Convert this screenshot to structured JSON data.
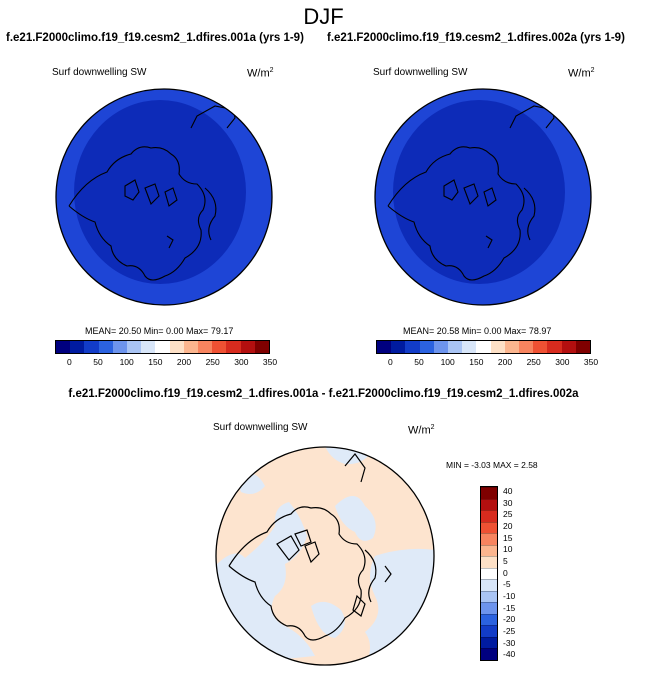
{
  "header": {
    "season": "DJF",
    "left_title": "f.e21.F2000climo.f19_f19.cesm2_1.dfires.001a (yrs 1-9)",
    "right_title": "f.e21.F2000climo.f19_f19.cesm2_1.dfires.002a (yrs 1-9)",
    "diff_title": "f.e21.F2000climo.f19_f19.cesm2_1.dfires.001a - f.e21.F2000climo.f19_f19.cesm2_1.dfires.002a"
  },
  "colors": {
    "map_fill_dark": "#0d2bb8",
    "map_fill_mid": "#1e45d6",
    "diff_pos": "#fde4cf",
    "diff_neg": "#dfeaf8",
    "abs_colorbar": [
      "#00007f",
      "#001ba0",
      "#123cc8",
      "#2b62e0",
      "#6d94ed",
      "#a9c4f4",
      "#d8e6f9",
      "#ffffff",
      "#fde0c6",
      "#fbb58e",
      "#f7845f",
      "#ef5133",
      "#d72b1e",
      "#b30f0f",
      "#7f0000"
    ],
    "diff_colorbar": [
      "#7f0000",
      "#b30f0f",
      "#d72b1e",
      "#ef5133",
      "#f7845f",
      "#fbb58e",
      "#fde0c6",
      "#ffffff",
      "#d8e6f9",
      "#a9c4f4",
      "#6d94ed",
      "#2b62e0",
      "#123cc8",
      "#001ba0",
      "#00007f"
    ]
  },
  "panels": [
    {
      "variable": "Surf downwelling SW",
      "units_base": "W/m",
      "units_exp": "2",
      "stats": "MEAN=  20.50  Min=   0.00  Max=  79.17",
      "colorbar_ticks": [
        "0",
        "50",
        "100",
        "150",
        "200",
        "250",
        "300",
        "350"
      ]
    },
    {
      "variable": "Surf downwelling SW",
      "units_base": "W/m",
      "units_exp": "2",
      "stats": "MEAN=  20.58  Min=   0.00  Max=  78.97",
      "colorbar_ticks": [
        "0",
        "50",
        "100",
        "150",
        "200",
        "250",
        "300",
        "350"
      ]
    }
  ],
  "diff_panel": {
    "variable": "Surf downwelling SW",
    "units_base": "W/m",
    "units_exp": "2",
    "stats": "MIN =  -3.03  MAX =    2.58",
    "colorbar_ticks": [
      "40",
      "30",
      "25",
      "20",
      "15",
      "10",
      "5",
      "0",
      "-5",
      "-10",
      "-15",
      "-20",
      "-25",
      "-30",
      "-40"
    ]
  },
  "chart_data": [
    {
      "type": "heatmap",
      "title": "f.e21.F2000climo.f19_f19.cesm2_1.dfires.001a (yrs 1-9)",
      "variable": "Surf downwelling SW",
      "units": "W/m2",
      "projection": "north polar stereographic",
      "mean": 20.5,
      "min": 0.0,
      "max": 79.17,
      "colorbar_levels": [
        0,
        25,
        50,
        75,
        100,
        125,
        150,
        175,
        200,
        225,
        250,
        275,
        300,
        325,
        350
      ]
    },
    {
      "type": "heatmap",
      "title": "f.e21.F2000climo.f19_f19.cesm2_1.dfires.002a (yrs 1-9)",
      "variable": "Surf downwelling SW",
      "units": "W/m2",
      "projection": "north polar stereographic",
      "mean": 20.58,
      "min": 0.0,
      "max": 78.97,
      "colorbar_levels": [
        0,
        25,
        50,
        75,
        100,
        125,
        150,
        175,
        200,
        225,
        250,
        275,
        300,
        325,
        350
      ]
    },
    {
      "type": "heatmap",
      "title": "f.e21.F2000climo.f19_f19.cesm2_1.dfires.001a - f.e21.F2000climo.f19_f19.cesm2_1.dfires.002a",
      "variable": "Surf downwelling SW",
      "units": "W/m2",
      "projection": "north polar stereographic",
      "min": -3.03,
      "max": 2.58,
      "colorbar_levels": [
        -40,
        -30,
        -25,
        -20,
        -15,
        -10,
        -5,
        0,
        5,
        10,
        15,
        20,
        25,
        30,
        40
      ]
    }
  ]
}
